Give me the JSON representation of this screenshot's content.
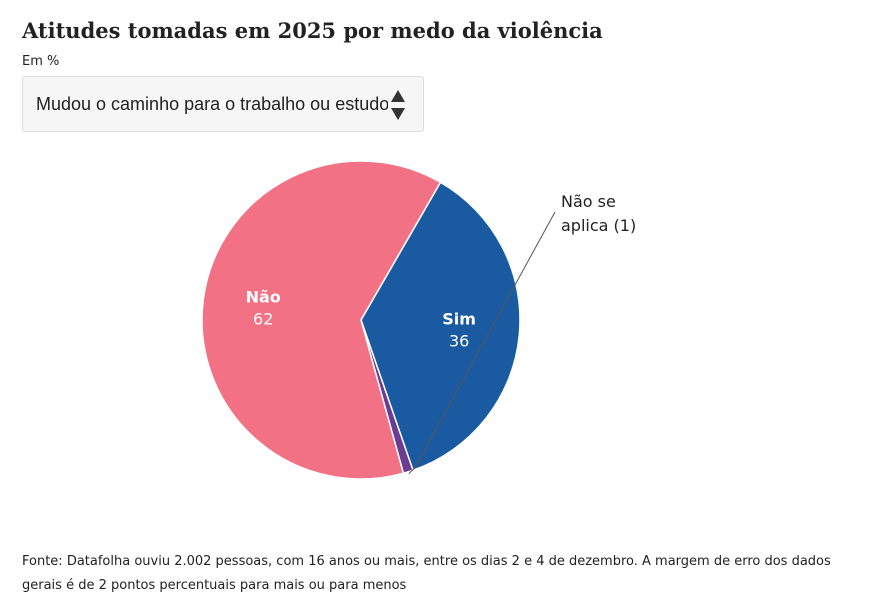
{
  "header": {
    "title": "Atitudes tomadas em 2025 por medo da violência",
    "subtitle": "Em %"
  },
  "selector": {
    "selected_label": "Mudou o caminho para o trabalho ou estudo",
    "icon": "up-down-arrows-icon"
  },
  "chart_data": {
    "type": "pie",
    "categories": [
      "Sim",
      "Não se aplica",
      "Não"
    ],
    "values": [
      36,
      1,
      62
    ],
    "labels": [
      {
        "name": "Sim",
        "value": "36"
      },
      {
        "name": "Não se aplica",
        "line1": "Não se",
        "line2": "aplica (1)"
      },
      {
        "name": "Não",
        "value": "62"
      }
    ],
    "colors": [
      "#1a5aa0",
      "#6b3c93",
      "#f27184"
    ],
    "start_angle_deg": 30,
    "direction": "clockwise"
  },
  "footer": {
    "source": "Fonte: Datafolha ouviu 2.002 pessoas, com 16 anos ou mais, entre os dias 2 e 4 de dezembro. A margem de erro dos dados gerais é de 2 pontos percentuais para mais ou para menos"
  }
}
